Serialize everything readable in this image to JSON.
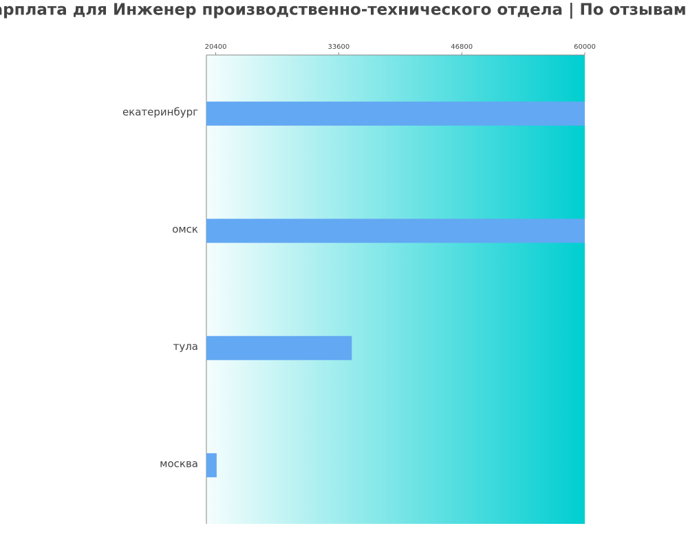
{
  "chart_data": {
    "type": "bar",
    "orientation": "horizontal",
    "title": "Зарплата для Инженер производственно-технического отдела | По отзывам",
    "categories": [
      "екатеринбург",
      "омск",
      "тула",
      "москва"
    ],
    "values": [
      60000,
      60000,
      35000,
      20500
    ],
    "color": "#63a8f3",
    "background_gradient": [
      "#f5fdfd",
      "#00ced1"
    ],
    "xlim": [
      19400,
      60000
    ],
    "xticks": [
      20400,
      33600,
      46800,
      60000
    ]
  }
}
